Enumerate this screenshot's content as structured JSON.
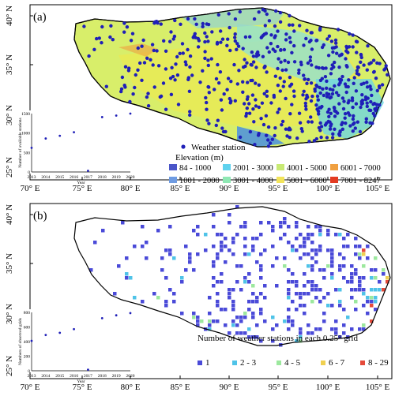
{
  "panels": [
    {
      "label": "(a)",
      "lat_ticks": [
        "40° N",
        "35° N",
        "30° N",
        "25° N"
      ],
      "lon_ticks": [
        "70° E",
        "75° E",
        "80° E",
        "85° E",
        "90° E",
        "95° E",
        "100° E",
        "105° E"
      ],
      "legend": {
        "station_label": "Weather station",
        "elev_title": "Elevation (m)",
        "elev_classes": [
          {
            "label": "84 - 1000",
            "color": "#4a55c8"
          },
          {
            "label": "2001 - 3000",
            "color": "#5fd2ee"
          },
          {
            "label": "4001 - 5000",
            "color": "#c8ea74"
          },
          {
            "label": "6001 - 7000",
            "color": "#f0a040"
          },
          {
            "label": "1001 - 2000",
            "color": "#6e9be2"
          },
          {
            "label": "3001 - 4000",
            "color": "#8fe8b4"
          },
          {
            "label": "5001 - 6000",
            "color": "#f2e45a"
          },
          {
            "label": "7001 - 8247",
            "color": "#e33b22"
          }
        ]
      }
    },
    {
      "label": "(b)",
      "lat_ticks": [
        "40° N",
        "35° N",
        "30° N",
        "25° N"
      ],
      "lon_ticks": [
        "70° E",
        "75° E",
        "80° E",
        "85° E",
        "90° E",
        "95° E",
        "100° E",
        "105° E"
      ],
      "legend": {
        "title": "Number of weather stations in each 0.25° grid",
        "classes": [
          {
            "label": "1",
            "color": "#4a4ad8"
          },
          {
            "label": "2 - 3",
            "color": "#4fc3e8"
          },
          {
            "label": "4 - 5",
            "color": "#9ce89e"
          },
          {
            "label": "6 - 7",
            "color": "#f0d050"
          },
          {
            "label": "8 - 29",
            "color": "#e54a3a"
          }
        ]
      }
    }
  ],
  "chart_data": [
    {
      "type": "scatter",
      "title": "",
      "xlabel": "Year",
      "ylabel": "Number of available stations",
      "x": [
        2013,
        2014,
        2015,
        2016,
        2017,
        2018,
        2019,
        2020
      ],
      "y_ticks": [
        0,
        500,
        1000,
        1500
      ],
      "ylim": [
        0,
        1500
      ],
      "series": [
        {
          "values": [
            620,
            860,
            930,
            1020,
            30,
            1410,
            1450,
            1500
          ]
        }
      ]
    },
    {
      "type": "scatter",
      "title": "",
      "xlabel": "Year",
      "ylabel": "Numbers of observed grids",
      "x": [
        2013,
        2014,
        2015,
        2016,
        2017,
        2018,
        2019,
        2020
      ],
      "y_ticks": [
        0,
        200,
        400,
        600,
        800
      ],
      "ylim": [
        0,
        800
      ],
      "series": [
        {
          "values": [
            410,
            490,
            520,
            570,
            15,
            720,
            760,
            790
          ]
        }
      ]
    }
  ]
}
